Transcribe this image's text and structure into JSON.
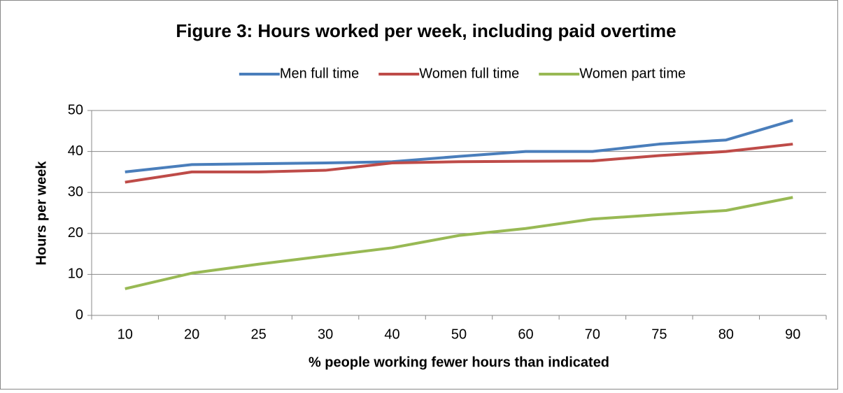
{
  "chart_data": {
    "type": "line",
    "title": "Figure 3: Hours worked per week, including paid overtime",
    "xlabel": "% people working fewer hours than indicated",
    "ylabel": "Hours per week",
    "categories": [
      "10",
      "20",
      "25",
      "30",
      "40",
      "50",
      "60",
      "70",
      "75",
      "80",
      "90"
    ],
    "series": [
      {
        "name": "Men full time",
        "color": "#4a7ebb",
        "values": [
          35,
          36.8,
          37,
          37.2,
          37.5,
          38.8,
          40,
          40,
          41.8,
          42.8,
          47.6
        ]
      },
      {
        "name": "Women full time",
        "color": "#be4b48",
        "values": [
          32.5,
          35,
          35,
          35.4,
          37.2,
          37.5,
          37.6,
          37.7,
          39,
          40,
          41.8
        ]
      },
      {
        "name": "Women part time",
        "color": "#98b954",
        "values": [
          6.5,
          10.3,
          12.5,
          14.5,
          16.5,
          19.5,
          21.2,
          23.5,
          24.6,
          25.6,
          28.8
        ]
      }
    ],
    "ylim": [
      0,
      50
    ],
    "yticks": [
      0,
      10,
      20,
      30,
      40,
      50
    ],
    "grid": true,
    "legend": "top"
  }
}
